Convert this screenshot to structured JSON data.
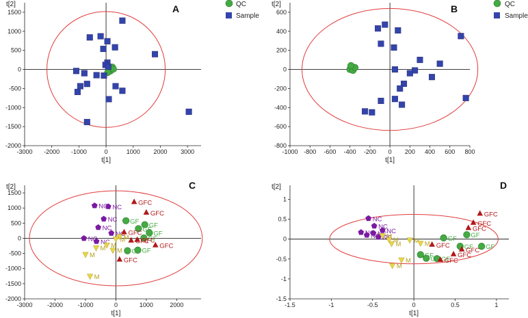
{
  "colors": {
    "qc": "#44aa44",
    "sample": "#3344aa",
    "nc": "#7a1aa0",
    "m": "#e8d64a",
    "gf": "#44aa44",
    "gfc": "#b01818",
    "ellipse": "#e03a3a",
    "axis": "#222222"
  },
  "legend": {
    "qc_label": "QC",
    "sample_label": "Sample"
  },
  "chart_data": [
    {
      "panel": "A",
      "type": "scatter",
      "xlabel": "t[1]",
      "ylabel": "t[2]",
      "xlim": [
        -3000,
        3500
      ],
      "ylim": [
        -2000,
        1750
      ],
      "xticks": [
        -3000,
        -2000,
        -1000,
        0,
        1000,
        2000,
        3000
      ],
      "yticks": [
        -2000,
        -1500,
        -1000,
        -500,
        0,
        500,
        1000,
        1500
      ],
      "ellipse": {
        "rx": 2180,
        "ry": 1520
      },
      "legend": [
        "QC",
        "Sample"
      ],
      "series": [
        {
          "name": "QC",
          "marker": "circle",
          "color": "qc",
          "points": [
            [
              200,
              30
            ],
            [
              120,
              0
            ],
            [
              230,
              60
            ],
            [
              160,
              -40
            ],
            [
              60,
              -80
            ],
            [
              270,
              10
            ]
          ]
        },
        {
          "name": "Sample",
          "marker": "square",
          "color": "sample",
          "points": [
            [
              600,
              1280
            ],
            [
              -200,
              870
            ],
            [
              -600,
              840
            ],
            [
              50,
              740
            ],
            [
              -100,
              540
            ],
            [
              330,
              580
            ],
            [
              1800,
              400
            ],
            [
              50,
              180
            ],
            [
              -1100,
              -40
            ],
            [
              -800,
              -100
            ],
            [
              -350,
              -150
            ],
            [
              -700,
              -380
            ],
            [
              -950,
              -440
            ],
            [
              -1050,
              -590
            ],
            [
              350,
              -440
            ],
            [
              600,
              -560
            ],
            [
              100,
              -780
            ],
            [
              -700,
              -1380
            ],
            [
              3050,
              -1110
            ],
            [
              -80,
              -160
            ],
            [
              -20,
              120
            ],
            [
              80,
              70
            ]
          ]
        }
      ]
    },
    {
      "panel": "B",
      "type": "scatter",
      "xlabel": "t[1]",
      "ylabel": "t[2]",
      "xlim": [
        -1000,
        800
      ],
      "ylim": [
        -800,
        700
      ],
      "xticks": [
        -1000,
        -800,
        -600,
        -400,
        -200,
        0,
        200,
        400,
        600,
        800
      ],
      "yticks": [
        -800,
        -600,
        -400,
        -200,
        0,
        200,
        400,
        600
      ],
      "ellipse": {
        "rx": 880,
        "ry": 640
      },
      "legend": [
        "QC",
        "Sample"
      ],
      "series": [
        {
          "name": "QC",
          "marker": "circle",
          "color": "qc",
          "points": [
            [
              -380,
              30
            ],
            [
              -360,
              10
            ],
            [
              -400,
              0
            ],
            [
              -370,
              -10
            ],
            [
              -350,
              20
            ],
            [
              -390,
              40
            ]
          ]
        },
        {
          "name": "Sample",
          "marker": "square",
          "color": "sample",
          "points": [
            [
              -50,
              470
            ],
            [
              -120,
              430
            ],
            [
              80,
              410
            ],
            [
              -90,
              270
            ],
            [
              40,
              230
            ],
            [
              710,
              350
            ],
            [
              300,
              100
            ],
            [
              500,
              60
            ],
            [
              50,
              0
            ],
            [
              250,
              -10
            ],
            [
              200,
              -40
            ],
            [
              420,
              -80
            ],
            [
              140,
              -150
            ],
            [
              100,
              -200
            ],
            [
              760,
              -300
            ],
            [
              50,
              -310
            ],
            [
              -90,
              -330
            ],
            [
              120,
              -370
            ],
            [
              -250,
              -440
            ],
            [
              -180,
              -450
            ]
          ]
        }
      ]
    },
    {
      "panel": "C",
      "type": "scatter",
      "xlabel": "t[1]",
      "ylabel": "t[2]",
      "xlim": [
        -3000,
        2800
      ],
      "ylim": [
        -2000,
        1750
      ],
      "xticks": [
        -3000,
        -2000,
        -1000,
        0,
        1000,
        2000
      ],
      "yticks": [
        -2000,
        -1500,
        -1000,
        -500,
        0,
        500,
        1000,
        1500
      ],
      "ellipse": {
        "rx": 2840,
        "ry": 1570
      },
      "series": [
        {
          "name": "NC",
          "marker": "pentagon",
          "color": "nc",
          "points": [
            [
              -700,
              1080
            ],
            [
              -250,
              1050
            ],
            [
              -400,
              640
            ],
            [
              -580,
              360
            ],
            [
              -150,
              170
            ],
            [
              -1050,
              0
            ],
            [
              -640,
              -100
            ]
          ],
          "labels": [
            "NC",
            "NC",
            "NC",
            "NC",
            "NC",
            "NC",
            "NC"
          ]
        },
        {
          "name": "M",
          "marker": "tri-down",
          "color": "m",
          "points": [
            [
              120,
              60
            ],
            [
              0,
              -20
            ],
            [
              -300,
              -220
            ],
            [
              -650,
              -310
            ],
            [
              -100,
              -390
            ],
            [
              -1000,
              -530
            ],
            [
              -850,
              -1250
            ]
          ],
          "labels": [
            "M",
            "M",
            "M",
            "M",
            "M",
            "M",
            "M"
          ]
        },
        {
          "name": "GF",
          "marker": "circle",
          "color": "gf",
          "points": [
            [
              330,
              580
            ],
            [
              950,
              450
            ],
            [
              740,
              320
            ],
            [
              1100,
              180
            ],
            [
              920,
              10
            ],
            [
              720,
              -390
            ],
            [
              380,
              -410
            ]
          ],
          "labels": [
            "GF",
            "GF",
            "GF",
            "GF",
            "GF",
            "GF",
            "GF"
          ]
        },
        {
          "name": "GFC",
          "marker": "tri-up",
          "color": "gfc",
          "points": [
            [
              600,
              1200
            ],
            [
              1000,
              850
            ],
            [
              270,
              200
            ],
            [
              700,
              -50
            ],
            [
              1300,
              -230
            ],
            [
              500,
              -70
            ],
            [
              120,
              -700
            ]
          ],
          "labels": [
            "GFC",
            "GFC",
            "GFC",
            "GFC",
            "GFC",
            "GFC",
            "GFC"
          ]
        }
      ]
    },
    {
      "panel": "D",
      "type": "scatter",
      "xlabel": "t[1]",
      "ylabel": "t[2]",
      "xlim": [
        -1.5,
        1.15
      ],
      "ylim": [
        -1.5,
        1.35
      ],
      "xticks": [
        -1.5,
        -1,
        -0.5,
        0,
        0.5,
        1
      ],
      "yticks": [
        -1.5,
        -1,
        -0.5,
        0,
        0.5,
        1
      ],
      "ellipse": {
        "rx": 1.02,
        "ry": 0.62
      },
      "series": [
        {
          "name": "NC",
          "marker": "pentagon",
          "color": "nc",
          "points": [
            [
              -0.55,
              0.52
            ],
            [
              -0.48,
              0.33
            ],
            [
              -0.38,
              0.22
            ],
            [
              -0.64,
              0.17
            ],
            [
              -0.57,
              0.1
            ],
            [
              -0.49,
              0.15
            ],
            [
              -0.43,
              0.05
            ]
          ],
          "labels": [
            "NC",
            "NC",
            "NC",
            "NC",
            "NC",
            "NC",
            "NC"
          ]
        },
        {
          "name": "M",
          "marker": "tri-down",
          "color": "m",
          "points": [
            [
              -0.38,
              0.09
            ],
            [
              -0.27,
              -0.11
            ],
            [
              -0.3,
              -0.01
            ],
            [
              -0.05,
              -0.02
            ],
            [
              0.08,
              -0.1
            ],
            [
              -0.15,
              -0.52
            ],
            [
              -0.26,
              -0.66
            ]
          ],
          "labels": [
            "M",
            "M",
            "M",
            "M",
            "M",
            "M",
            "M"
          ]
        },
        {
          "name": "GF",
          "marker": "circle",
          "color": "gf",
          "points": [
            [
              0.36,
              0.03
            ],
            [
              0.64,
              0.11
            ],
            [
              0.56,
              -0.18
            ],
            [
              0.08,
              -0.39
            ],
            [
              0.15,
              -0.48
            ],
            [
              0.28,
              -0.49
            ],
            [
              0.82,
              -0.18
            ]
          ],
          "labels": [
            "GF",
            "GF",
            "GF",
            "GF",
            "GF",
            "GF",
            "GF"
          ]
        },
        {
          "name": "GFC",
          "marker": "tri-up",
          "color": "gfc",
          "points": [
            [
              0.8,
              0.64
            ],
            [
              0.72,
              0.41
            ],
            [
              0.66,
              0.28
            ],
            [
              0.58,
              -0.26
            ],
            [
              0.48,
              -0.38
            ],
            [
              0.32,
              -0.52
            ],
            [
              0.22,
              -0.14
            ]
          ],
          "labels": [
            "GFC",
            "GFC",
            "GFC",
            "GFC",
            "GFC",
            "GFC",
            "GFC"
          ]
        }
      ]
    }
  ]
}
